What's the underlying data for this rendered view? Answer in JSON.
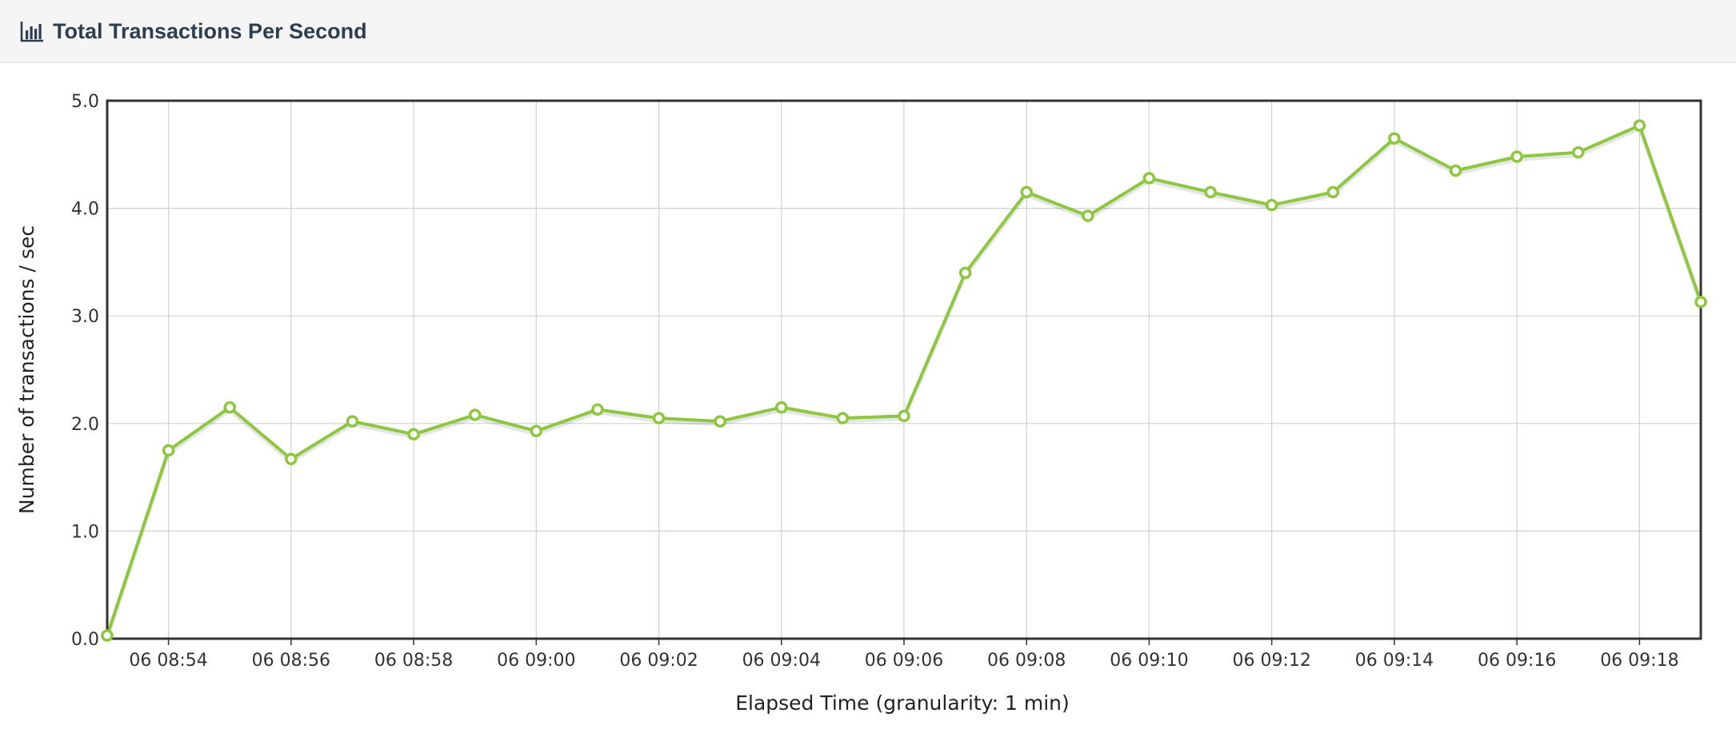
{
  "panel": {
    "title": "Total Transactions Per Second",
    "icon": "bar-chart-icon"
  },
  "colors": {
    "series": "#8dc63f",
    "grid": "#d0d0d0",
    "frame": "#333333",
    "header_bg": "#f5f5f5",
    "title": "#2c3e50"
  },
  "chart_data": {
    "type": "line",
    "title": "Total Transactions Per Second",
    "xlabel": "Elapsed Time (granularity: 1 min)",
    "ylabel": "Number of transactions / sec",
    "ylim": [
      0,
      5
    ],
    "yticks": [
      "0.0",
      "1.0",
      "2.0",
      "3.0",
      "4.0",
      "5.0"
    ],
    "xticks": [
      "06 08:54",
      "06 08:56",
      "06 08:58",
      "06 09:00",
      "06 09:02",
      "06 09:04",
      "06 09:06",
      "06 09:08",
      "06 09:10",
      "06 09:12",
      "06 09:14",
      "06 09:16",
      "06 09:18"
    ],
    "x": [
      "06 08:53",
      "06 08:54",
      "06 08:55",
      "06 08:56",
      "06 08:57",
      "06 08:58",
      "06 08:59",
      "06 09:00",
      "06 09:01",
      "06 09:02",
      "06 09:03",
      "06 09:04",
      "06 09:05",
      "06 09:06",
      "06 09:07",
      "06 09:08",
      "06 09:09",
      "06 09:10",
      "06 09:11",
      "06 09:12",
      "06 09:13",
      "06 09:14",
      "06 09:15",
      "06 09:16",
      "06 09:17",
      "06 09:18",
      "06 09:19"
    ],
    "series": [
      {
        "values": [
          0.03,
          1.75,
          2.15,
          1.67,
          2.02,
          1.9,
          2.08,
          1.93,
          2.13,
          2.05,
          2.02,
          2.15,
          2.05,
          2.07,
          3.4,
          4.15,
          3.93,
          4.28,
          4.15,
          4.03,
          4.15,
          4.65,
          4.35,
          4.48,
          4.52,
          4.77,
          3.13
        ]
      }
    ],
    "grid": true,
    "legend": "none"
  }
}
